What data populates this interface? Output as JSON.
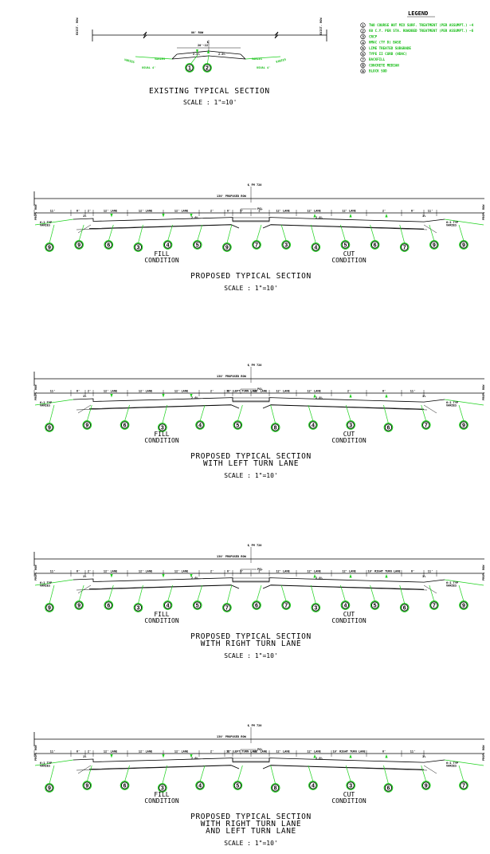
{
  "legend": {
    "title": "LEGEND",
    "items": [
      {
        "num": "1",
        "text": "TWO COURSE HOT MIX SURF. TREATMENT (PER ASSUMPT.) ~4"
      },
      {
        "num": "2",
        "text": "60 C.Y. PER STA. ROADBED TREATMENT (PER ASSUMPT.) ~6"
      },
      {
        "num": "3",
        "text": "CRCP"
      },
      {
        "num": "4",
        "text": "HMAC (TY D) BASE"
      },
      {
        "num": "5",
        "text": "LIME TREATED SUBGRADE"
      },
      {
        "num": "6",
        "text": "TYPE II CURB (HDAC)"
      },
      {
        "num": "7",
        "text": "BACKFILL"
      },
      {
        "num": "8",
        "text": "CONCRETE MEDIAN"
      },
      {
        "num": "9",
        "text": "BLOCK SOD"
      }
    ]
  },
  "existing": {
    "title": "EXISTING TYPICAL SECTION",
    "scale": "SCALE : 1\"=10'",
    "row_label": "80' ROW",
    "pavement_label": "20'-22'",
    "centerline_label": "℄",
    "row_left": "EXIST. ROW",
    "row_right": "EXIST. ROW",
    "slope_left": "2.0%",
    "slope_right": "2.0%",
    "varies_left": "VARIES",
    "varies_left2": "VARIES",
    "varies_right": "VARIES",
    "varies_right2": "VARIES",
    "usual_left": "USUAL 4'",
    "usual_right": "USUAL 4'"
  },
  "sections": [
    {
      "title_lines": [
        "PROPOSED TYPICAL SECTION"
      ],
      "scale": "SCALE : 1\"=10'",
      "centerline": "℄ FM 720",
      "row": "130' PROPOSED ROW",
      "prop_row_left": "PROP. ROW",
      "prop_row_right": "PROP. ROW",
      "fill": "FILL\nCONDITION",
      "cut": "CUT\nCONDITION",
      "pgl": "PGL",
      "dims": [
        "11'",
        "6'",
        "2'",
        "12' LANE",
        "12' LANE",
        "12' LANE",
        "2'",
        "6'",
        "6'",
        "2'",
        "12' LANE",
        "12' LANE",
        "12' LANE",
        "2'",
        "6'",
        "11'"
      ],
      "slope_a": "2.0%",
      "slope_b": "2.0%",
      "slope_c": "1%",
      "slope_d": "1%",
      "side_left": "6:1 TYP\nVARIES",
      "side_right": "6:1 TYP\nVARIES",
      "callouts": [
        "9",
        "9",
        "6",
        "3",
        "4",
        "5",
        "9",
        "7",
        "3",
        "4",
        "5",
        "6",
        "7",
        "9",
        "9"
      ]
    },
    {
      "title_lines": [
        "PROPOSED TYPICAL SECTION",
        "WITH LEFT TURN LANE"
      ],
      "scale": "SCALE : 1\"=10'",
      "centerline": "℄ FM 720",
      "row": "130' PROPOSED ROW",
      "prop_row_left": "PROP. ROW",
      "prop_row_right": "PROP. ROW",
      "fill": "FILL\nCONDITION",
      "cut": "CUT\nCONDITION",
      "pgl": "PGL",
      "dims": [
        "11'",
        "6'",
        "2'",
        "12' LANE",
        "12' LANE",
        "12' LANE",
        "2'",
        "6'",
        "11' LEFT TURN LANE",
        "12' LANE",
        "12' LANE",
        "12' LANE",
        "2'",
        "6'",
        "11'"
      ],
      "slope_a": "2.0%",
      "slope_b": "2.0%",
      "slope_c": "1%",
      "slope_d": "1%",
      "side_left": "6:1 TYP\nVARIES",
      "side_right": "6:1 TYP\nVARIES",
      "callouts": [
        "9",
        "9",
        "6",
        "3",
        "4",
        "5",
        "8",
        "4",
        "3",
        "6",
        "7",
        "9"
      ]
    },
    {
      "title_lines": [
        "PROPOSED TYPICAL SECTION",
        "WITH RIGHT TURN LANE"
      ],
      "scale": "SCALE : 1\"=10'",
      "centerline": "℄ FM 720",
      "row": "130' PROPOSED ROW",
      "prop_row_left": "PROP. ROW",
      "prop_row_right": "PROP. ROW",
      "fill": "FILL\nCONDITION",
      "cut": "CUT\nCONDITION",
      "pgl": "PGL",
      "dims": [
        "11'",
        "6'",
        "2'",
        "12' LANE",
        "12' LANE",
        "12' LANE",
        "2'",
        "6'",
        "6'",
        "2'",
        "12' LANE",
        "12' LANE",
        "12' LANE",
        "10' RIGHT TURN LANE",
        "6'",
        "11'"
      ],
      "slope_a": "2.0%",
      "slope_b": "2.0%",
      "slope_c": "1%",
      "slope_d": "1%",
      "side_left": "6:1 TYP\nVARIES",
      "side_right": "6:1 TYP\nVARIES",
      "callouts": [
        "9",
        "9",
        "6",
        "3",
        "4",
        "5",
        "7",
        "6",
        "7",
        "3",
        "4",
        "5",
        "6",
        "7",
        "9"
      ]
    },
    {
      "title_lines": [
        "PROPOSED TYPICAL SECTION",
        "WITH RIGHT TURN LANE",
        "AND LEFT TURN LANE"
      ],
      "scale": "SCALE : 1\"=10'",
      "centerline": "℄ FM 720",
      "row": "130' PROPOSED ROW",
      "prop_row_left": "PROP. ROW",
      "prop_row_right": "PROP. ROW",
      "fill": "FILL\nCONDITION",
      "cut": "CUT\nCONDITION",
      "pgl": "PGL",
      "dims": [
        "11'",
        "6'",
        "2'",
        "12' LANE",
        "12' LANE",
        "12' LANE",
        "2'",
        "6'",
        "11' LEFT TURN LANE",
        "12' LANE",
        "12' LANE",
        "12' LANE",
        "10' RIGHT TURN LANE",
        "6'",
        "11'"
      ],
      "slope_a": "2.0%",
      "slope_b": "2.0%",
      "slope_c": "1%",
      "slope_d": "1%",
      "side_left": "6:1 TYP\nVARIES",
      "side_right": "6:1 TYP\nVARIES",
      "callouts": [
        "9",
        "9",
        "6",
        "3",
        "4",
        "5",
        "8",
        "4",
        "3",
        "6",
        "9",
        "7"
      ]
    }
  ]
}
